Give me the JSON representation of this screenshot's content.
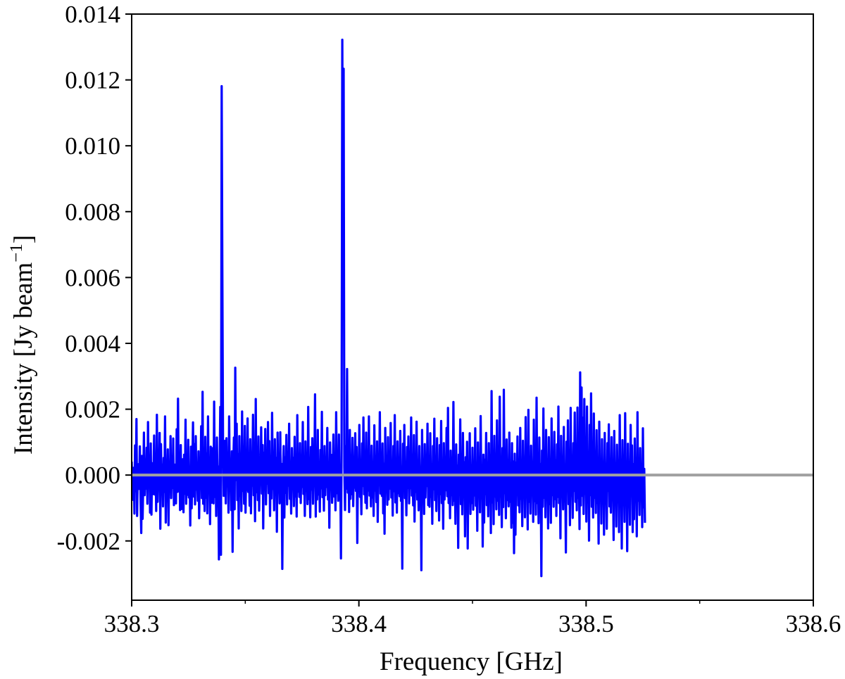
{
  "chart_data": {
    "type": "line",
    "xlabel": "Frequency [GHz]",
    "ylabel_main": "Intensity [Jy beam",
    "ylabel_sup": "−1",
    "ylabel_close": "]",
    "xlim": [
      338.3,
      338.6
    ],
    "ylim": [
      -0.0038,
      0.014
    ],
    "x_ticks": [
      338.3,
      338.4,
      338.5,
      338.6
    ],
    "x_tick_labels": [
      "338.3",
      "338.4",
      "338.5",
      "338.6"
    ],
    "x_minor_ticks": [
      338.35,
      338.45,
      338.55
    ],
    "y_ticks": [
      -0.002,
      0.0,
      0.002,
      0.004,
      0.006,
      0.008,
      0.01,
      0.012,
      0.014
    ],
    "y_tick_labels": [
      "-0.002",
      "0.000",
      "0.002",
      "0.004",
      "0.006",
      "0.008",
      "0.010",
      "0.012",
      "0.014"
    ],
    "grid": false,
    "baseline": 0.0,
    "colors": {
      "spectrum": "#0000ff",
      "baseline": "#a0a0a0"
    },
    "series": [
      {
        "x_start": 338.3,
        "x_step": 0.0003,
        "values": [
          0.00041,
          -0.00031,
          -0.00075,
          0.00022,
          -0.00117,
          0.0009,
          -0.00049,
          0.0017,
          -0.00124,
          0.00014,
          0.00033,
          -0.00042,
          0.00087,
          -0.00069,
          -0.00176,
          0.00058,
          -0.00133,
          -0.00017,
          0.00129,
          -0.00061,
          0.00017,
          -0.00041,
          0.00083,
          -0.00087,
          0.00161,
          -0.00028,
          0.00041,
          -0.00114,
          0.00096,
          -0.0012,
          0.00036,
          -0.00058,
          0.00011,
          0.0012,
          -0.00059,
          0.00047,
          -0.00109,
          0.00183,
          -0.00081,
          0.00032,
          -0.00042,
          0.00128,
          -0.00163,
          0.00094,
          -0.00024,
          0.00032,
          -0.00095,
          0.00052,
          -0.00051,
          0.00178,
          -0.00144,
          0.00026,
          -0.00026,
          0.00078,
          -0.00152,
          0.00023,
          -0.00021,
          0.00118,
          -0.0007,
          0.00044,
          -0.00039,
          0.00111,
          -0.00091,
          0.00011,
          0.00032,
          -0.00086,
          0.00139,
          -0.00051,
          0.00232,
          -0.00049,
          0.00055,
          -0.00106,
          0.00091,
          -0.00103,
          5e-05,
          0.00048,
          -0.00113,
          0.00062,
          -0.00057,
          0.00168,
          -0.00087,
          0.00037,
          -0.0006,
          0.00107,
          -0.00068,
          0.00018,
          -0.00153,
          0.00086,
          -0.00101,
          0.00036,
          0.0016,
          -0.00065,
          0.00094,
          -0.00089,
          0.00118,
          -0.00044,
          6e-05,
          -0.00078,
          0.00072,
          -0.00131,
          0.00021,
          -0.00014,
          0.00148,
          -0.0007,
          0.00253,
          -0.00087,
          0.00032,
          -0.00109,
          0.00116,
          -0.00069,
          0.00066,
          -0.00116,
          0.00178,
          -0.00038,
          0.00017,
          -0.00149,
          0.00086,
          -0.00084,
          0.00012,
          0.00082,
          -0.00086,
          0.00223,
          -0.00066,
          0.00047,
          -0.00124,
          0.00114,
          -0.00035,
          0.00026,
          -0.00256,
          8e-05,
          0.00207,
          -0.00242,
          0.01181,
          0.00638,
          0.00105,
          -0.00063,
          0.00018,
          0.00104,
          -0.00086,
          0.00112,
          -0.00033,
          0.00064,
          -0.00114,
          0.00178,
          -0.00043,
          0.00021,
          -0.00106,
          0.00072,
          -0.00233,
          0.00023,
          0.00114,
          -0.00104,
          0.00326,
          -0.00015,
          0.00156,
          -0.00076,
          0.00064,
          -0.00162,
          0.00118,
          -0.00063,
          0.00051,
          -0.00109,
          0.00193,
          -0.00048,
          0.00027,
          -0.00087,
          0.00149,
          -0.00114,
          0.00021,
          -0.00045,
          0.00172,
          -0.00051,
          0.00012,
          -0.00093,
          0.00109,
          -0.00116,
          0.00044,
          -0.00032,
          0.00183,
          -0.00061,
          0.00024,
          -0.0014,
          0.00231,
          -0.00052,
          0.00032,
          -0.00076,
          0.00117,
          -0.00108,
          0.00028,
          -0.00026,
          0.00145,
          -0.00056,
          0.00091,
          -0.00162,
          0.00068,
          -0.00034,
          0.0014,
          -0.00089,
          0.00034,
          -0.00026,
          0.00161,
          -0.00055,
          0.00103,
          -0.00124,
          0.00044,
          -0.00071,
          0.00189,
          -0.00042,
          0.0002,
          -0.00107,
          0.00109,
          -0.0006,
          0.00052,
          -0.00172,
          0.00129,
          -0.00038,
          0.00016,
          -0.00086,
          0.0013,
          -0.00076,
          0.00034,
          -0.00285,
          0.00011,
          0.00088,
          -0.00129,
          0.00054,
          -0.00054,
          0.00122,
          -0.00089,
          0.00033,
          -0.00032,
          0.00156,
          -0.00072,
          0.00024,
          -0.00117,
          0.00082,
          -0.00041,
          0.00052,
          -0.00094,
          0.00116,
          -0.00065,
          0.00028,
          -0.00126,
          0.00182,
          -0.0005,
          0.00017,
          -0.00066,
          0.00097,
          -0.00085,
          0.00046,
          -0.00036,
          0.00161,
          -0.00057,
          0.00015,
          -0.00124,
          0.00102,
          -0.00048,
          0.00036,
          -0.00088,
          0.00207,
          -0.00073,
          0.00024,
          -0.00128,
          0.00085,
          -0.00044,
          0.00112,
          -0.00087,
          0.00028,
          -0.00017,
          0.00245,
          -0.00126,
          0.00046,
          -0.00074,
          0.00137,
          -0.00059,
          0.00023,
          -0.00111,
          0.00076,
          -0.0004,
          0.00192,
          -0.00067,
          0.00035,
          -0.00108,
          0.00088,
          -0.00061,
          0.00015,
          -0.00036,
          0.00143,
          -0.00074,
          0.00028,
          -0.0016,
          0.00099,
          -0.00042,
          0.00061,
          -0.00084,
          0.00011,
          0.00123,
          -0.00065,
          0.00037,
          -0.00107,
          0.00191,
          -0.00055,
          0.00024,
          -0.00078,
          0.00123,
          -0.00054,
          0.00018,
          -0.00253,
          0.00082,
          0.01322,
          0.00651,
          0.01234,
          0.00024,
          -0.00106,
          0.00088,
          -0.00041,
          0.00322,
          -0.00053,
          0.00061,
          -0.00112,
          0.00137,
          -0.00072,
          0.00024,
          -0.00058,
          0.00113,
          -0.00094,
          0.00031,
          -0.00038,
          0.00127,
          -0.00048,
          0.00085,
          -0.00206,
          0.00042,
          -0.00028,
          0.00152,
          -0.00066,
          0.00018,
          -0.00119,
          0.00096,
          -0.00033,
          0.00175,
          -0.00058,
          0.00027,
          -0.00084,
          0.00129,
          -0.00101,
          0.00036,
          -0.00047,
          0.00178,
          -0.00062,
          0.00012,
          -0.00095,
          0.00089,
          -0.00068,
          0.00034,
          -0.00124,
          0.00151,
          -0.00047,
          0.00021,
          -0.00082,
          0.00102,
          -0.00142,
          0.00043,
          -0.00031,
          0.00191,
          -0.00056,
          0.00022,
          -0.00063,
          0.00096,
          -0.00116,
          0.00035,
          -0.00178,
          0.00143,
          -0.00052,
          0.00028,
          -0.0009,
          0.00115,
          -0.00074,
          0.00031,
          -0.00041,
          0.00158,
          -0.00068,
          0.00026,
          -0.00123,
          0.00088,
          -0.00049,
          0.00182,
          -0.00083,
          0.00031,
          -0.00114,
          0.00102,
          -0.00055,
          0.00022,
          -0.00064,
          0.00134,
          -0.00078,
          0.00024,
          -0.00284,
          0.00095,
          -0.00047,
          0.00152,
          -0.0007,
          0.00021,
          -0.00122,
          0.00085,
          -0.00039,
          0.00117,
          -0.00086,
          0.00032,
          -0.0004,
          0.00175,
          -0.00062,
          0.00026,
          -0.00092,
          0.00121,
          -0.00141,
          0.00037,
          -0.00051,
          0.00162,
          -0.00074,
          0.00028,
          -0.00107,
          0.00088,
          -0.00054,
          0.00019,
          -0.00289,
          0.00137,
          -0.00057,
          0.00032,
          -0.00118,
          0.00094,
          -0.00068,
          0.00045,
          -0.00033,
          0.00156,
          -0.00091,
          0.00022,
          -0.00096,
          0.00127,
          -0.00066,
          0.00028,
          -0.00148,
          0.00088,
          -0.00043,
          0.00171,
          -0.00076,
          0.00025,
          -0.00109,
          0.00112,
          -0.00054,
          0.00032,
          -0.00138,
          0.00091,
          -0.00058,
          0.00164,
          -0.00085,
          0.00023,
          -0.00163,
          0.00097,
          -0.00074,
          0.00028,
          -0.00046,
          0.00143,
          -0.00064,
          0.00204,
          -0.00085,
          0.00038,
          -0.00131,
          0.00074,
          -0.00061,
          0.00022,
          -0.00091,
          0.00222,
          -0.00078,
          0.00034,
          -0.00148,
          0.00093,
          -0.00041,
          0.00029,
          -0.00221,
          0.00062,
          -0.00047,
          0.00169,
          -0.00088,
          0.00021,
          -0.00119,
          0.00128,
          -0.00057,
          0.00039,
          -0.00186,
          0.00054,
          -0.00069,
          0.00101,
          -0.00223,
          0.00034,
          -0.00047,
          0.00127,
          -0.00118,
          0.00021,
          -0.00085,
          0.00083,
          -0.00105,
          0.00036,
          -0.00062,
          0.00142,
          -0.00093,
          0.00028,
          -0.00169,
          0.00099,
          -0.00065,
          0.00034,
          -0.00113,
          0.00179,
          -0.0007,
          0.00024,
          -0.00217,
          0.00062,
          -0.00144,
          0.00047,
          -0.00058,
          0.00128,
          -0.00091,
          0.00031,
          -0.00125,
          0.00097,
          -0.00043,
          0.00021,
          -0.00176,
          0.00255,
          -0.00083,
          0.00033,
          -0.00149,
          0.00119,
          -0.00065,
          0.00024,
          -0.00104,
          0.00166,
          -0.00078,
          0.00037,
          -0.00121,
          0.00238,
          -0.00064,
          0.00025,
          -0.00158,
          0.00082,
          -0.00097,
          0.00259,
          -0.00055,
          0.00032,
          -0.00131,
          0.00108,
          -0.00076,
          0.00021,
          -0.00095,
          0.00129,
          -0.00081,
          0.00034,
          -0.0016,
          0.00097,
          -0.00145,
          0.00041,
          -0.00237,
          0.00065,
          -0.00181,
          0.00038,
          -0.00059,
          0.00117,
          -0.00092,
          0.00027,
          -0.00113,
          0.00143,
          -0.00072,
          0.00019,
          -0.00155,
          0.00104,
          -0.00065,
          0.00036,
          -0.00128,
          0.00176,
          -0.00057,
          0.00024,
          -0.00165,
          0.00198,
          -0.00081,
          0.00033,
          -0.00117,
          0.00089,
          -0.00054,
          0.00024,
          -0.00142,
          0.00168,
          -0.00079,
          0.00031,
          -0.0012,
          0.00235,
          -0.00085,
          0.00026,
          -0.00146,
          0.00114,
          -0.00073,
          0.00034,
          -0.00307,
          0.00074,
          -0.00096,
          0.00202,
          -0.00069,
          0.00028,
          -0.00128,
          0.00137,
          -0.00051,
          0.00022,
          -0.00162,
          0.00115,
          -0.00088,
          0.00031,
          -0.00145,
          0.00172,
          -0.00061,
          0.00026,
          -0.00096,
          0.00131,
          -0.00073,
          0.00045,
          -0.00124,
          0.00093,
          -0.00066,
          0.00208,
          -0.00085,
          0.00034,
          -0.00192,
          0.00119,
          -0.00057,
          0.00028,
          -0.00104,
          0.00146,
          -0.00079,
          0.00021,
          -0.00235,
          0.00101,
          -0.00043,
          0.00166,
          -0.00088,
          0.00032,
          -0.00152,
          0.00204,
          -0.00062,
          0.00024,
          -0.0013,
          0.00097,
          -0.00048,
          0.0019,
          -0.00081,
          0.00038,
          -0.00107,
          0.00205,
          -0.00069,
          0.00031,
          -0.00164,
          0.00312,
          -0.00092,
          0.00266,
          -0.00063,
          0.00174,
          -0.00118,
          0.00231,
          -0.00057,
          0.00027,
          -0.00141,
          0.00208,
          -0.00082,
          0.00034,
          -0.00199,
          0.00152,
          -0.00061,
          0.00248,
          -0.00096,
          0.00035,
          -0.00129,
          0.00187,
          -0.00069,
          0.00022,
          -0.00115,
          0.00136,
          -0.00085,
          0.00041,
          -0.00208,
          0.00162,
          -0.00066,
          0.00025,
          -0.00147,
          0.00109,
          -0.00053,
          0.00034,
          -0.00181,
          0.00128,
          -0.00071,
          0.00025,
          -0.00163,
          0.00097,
          -0.00048,
          0.00154,
          -0.00095,
          0.00031,
          -0.00114,
          0.00115,
          -0.0005,
          0.00024,
          -0.00197,
          0.00134,
          -0.00067,
          0.00032,
          -0.00156,
          0.00092,
          -0.00052,
          0.00023,
          -0.00173,
          0.00182,
          -0.00074,
          0.00037,
          -0.00223,
          0.00106,
          -0.00059,
          0.00028,
          -0.00142,
          0.00188,
          -0.00082,
          0.00035,
          -0.00231,
          0.00095,
          -0.00064,
          0.00027,
          -0.00151,
          0.00152,
          -0.00046,
          0.0009,
          -0.00173,
          0.00033,
          -0.00134,
          0.00111,
          -0.00063,
          0.00024,
          -0.00186,
          0.00191,
          -0.00078,
          0.00036,
          -0.00121,
          0.00082,
          -0.00054,
          0.00021,
          -0.00158,
          0.00142,
          -0.00098,
          0.00019,
          -0.00145
        ]
      }
    ]
  }
}
